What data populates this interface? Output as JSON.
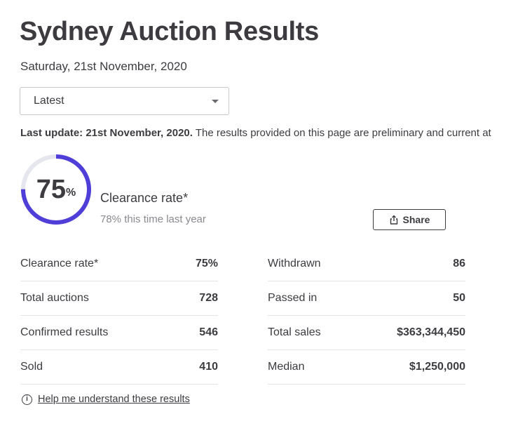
{
  "header": {
    "title": "Sydney Auction Results",
    "date": "Saturday, 21st November, 2020"
  },
  "select": {
    "value": "Latest"
  },
  "update": {
    "bold": "Last update: 21st November, 2020.",
    "text": " The results provided on this page are preliminary and current at"
  },
  "gauge": {
    "value": "75",
    "unit": "%",
    "fraction": 0.75,
    "color_fill": "#4f3ed8",
    "color_track": "#e6e7ee"
  },
  "clearance": {
    "label": "Clearance rate*",
    "sub": "78% this time last year"
  },
  "share": {
    "label": "Share",
    "icon": "share-icon"
  },
  "stats_left": [
    {
      "label": "Clearance rate*",
      "value": "75%"
    },
    {
      "label": "Total auctions",
      "value": "728"
    },
    {
      "label": "Confirmed results",
      "value": "546"
    },
    {
      "label": "Sold",
      "value": "410"
    }
  ],
  "stats_right": [
    {
      "label": "Withdrawn",
      "value": "86"
    },
    {
      "label": "Passed in",
      "value": "50"
    },
    {
      "label": "Total sales",
      "value": "$363,344,450"
    },
    {
      "label": "Median",
      "value": "$1,250,000"
    }
  ],
  "help": {
    "icon": "info-icon",
    "label": "Help me understand these results"
  }
}
